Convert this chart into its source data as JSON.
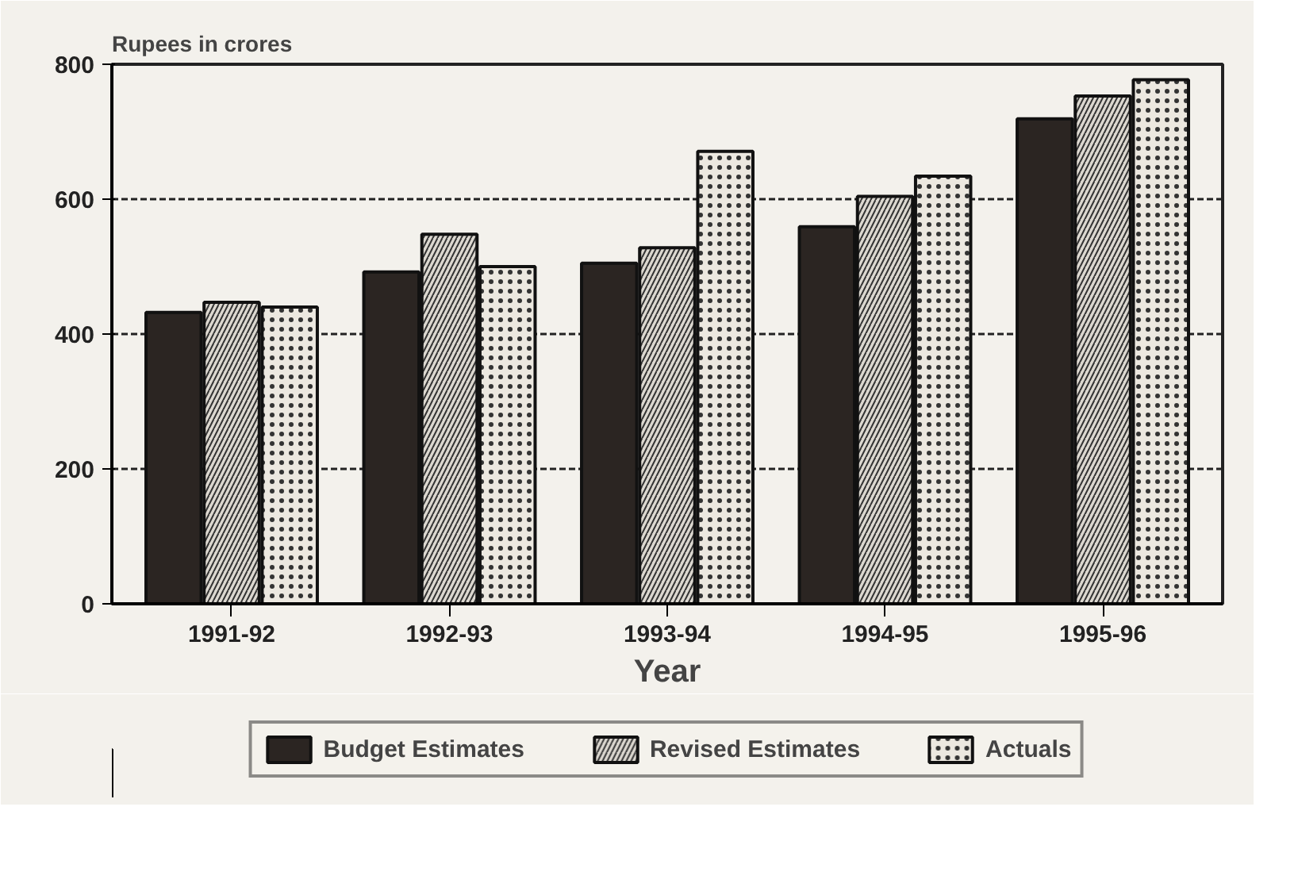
{
  "chart_data": {
    "type": "bar",
    "ylabel": "Rupees in crores",
    "xlabel": "Year",
    "categories": [
      "1991-92",
      "1992-93",
      "1993-94",
      "1994-95",
      "1995-96"
    ],
    "series": [
      {
        "name": "Budget Estimates",
        "color": "#2b2522",
        "values": [
          432,
          492,
          505,
          559,
          719
        ]
      },
      {
        "name": "Revised Estimates",
        "color": "#dcd8d0",
        "values": [
          447,
          548,
          528,
          604,
          753
        ]
      },
      {
        "name": "Actuals",
        "color": "#ece8e0",
        "values": [
          440,
          500,
          671,
          634,
          777
        ]
      }
    ],
    "ylim": [
      0,
      800
    ],
    "yticks": [
      0,
      200,
      400,
      600,
      800
    ],
    "grid": "y",
    "legend": "bottom"
  }
}
